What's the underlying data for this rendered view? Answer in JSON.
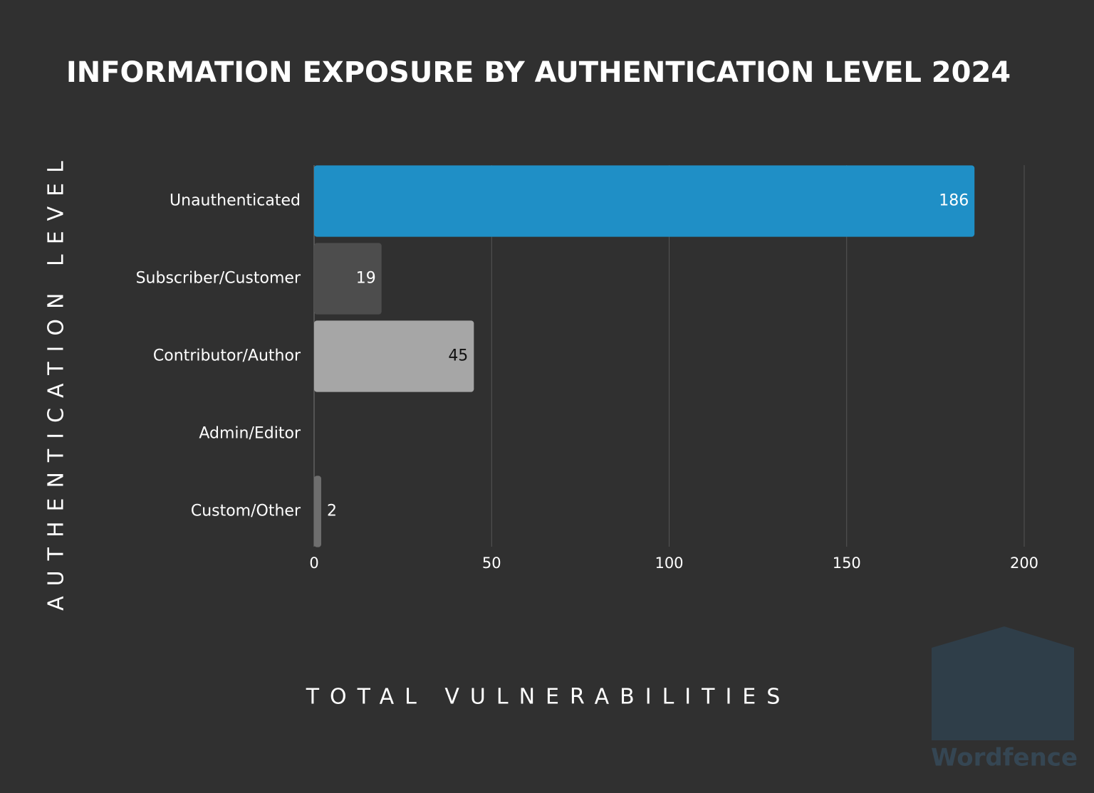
{
  "chart_data": {
    "type": "bar",
    "orientation": "horizontal",
    "title": "INFORMATION EXPOSURE BY AUTHENTICATION LEVEL 2024",
    "y_label": "AUTHENTICATION LEVEL",
    "x_label": "TOTAL VULNERABILITIES",
    "categories": [
      "Unauthenticated",
      "Subscriber/Customer",
      "Contributor/Author",
      "Admin/Editor",
      "Custom/Other"
    ],
    "values": [
      186,
      19,
      45,
      null,
      2
    ],
    "colors": [
      "#1f8fc6",
      "#4d4d4d",
      "#a6a6a6",
      "#8a8a8a",
      "#6e6e6e"
    ],
    "xlim": [
      0,
      200
    ],
    "xticks": [
      0,
      50,
      100,
      150,
      200
    ],
    "grid": true,
    "watermark": "Wordfence"
  }
}
